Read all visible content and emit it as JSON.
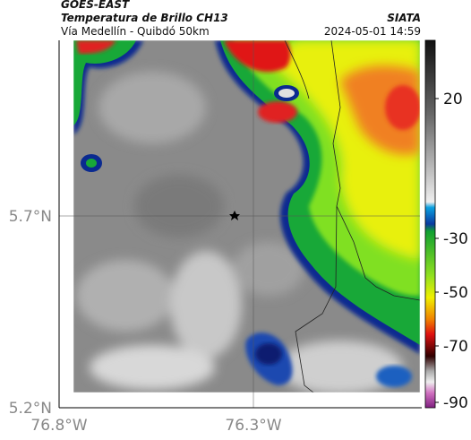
{
  "header": {
    "title": "GOES-EAST",
    "subtitle": "Temperatura de Brillo CH13",
    "location": "Vía Medellín - Quibdó 50km",
    "source": "SIATA",
    "datetime": "2024-05-01 14:59"
  },
  "map": {
    "lat_labels": [
      "5.7°N",
      "5.2°N"
    ],
    "lon_labels": [
      "76.8°W",
      "76.3°W"
    ],
    "colorbar": {
      "ticks": [
        20,
        -30,
        -50,
        -70,
        -90
      ]
    }
  }
}
